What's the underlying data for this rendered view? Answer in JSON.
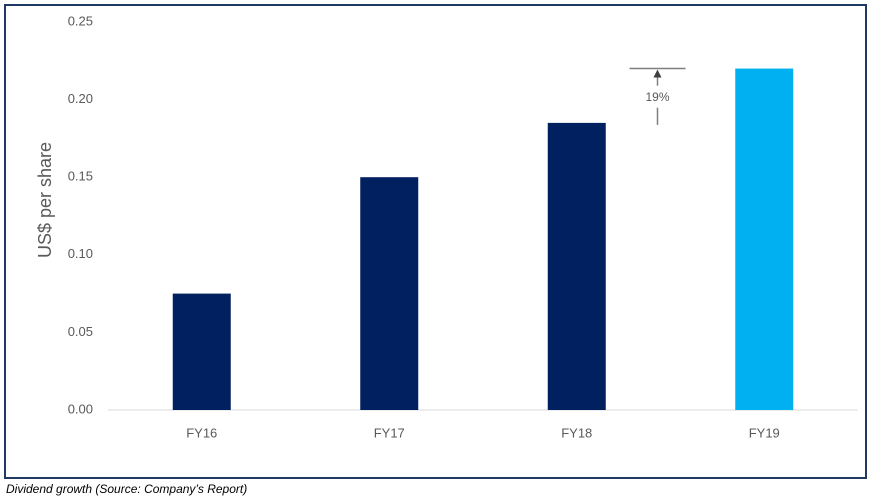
{
  "chart_data": {
    "type": "bar",
    "y_label": "US$ per share",
    "categories": [
      "FY16",
      "FY17",
      "FY18",
      "FY19"
    ],
    "values": [
      0.075,
      0.15,
      0.185,
      0.22
    ],
    "colors": [
      "#002060",
      "#002060",
      "#002060",
      "#00b0f0"
    ],
    "ylim": [
      0,
      0.25
    ],
    "yticks": [
      {
        "value": 0,
        "label": "0.00"
      },
      {
        "value": 0.05,
        "label": "0.05"
      },
      {
        "value": 0.1,
        "label": "0.10"
      },
      {
        "value": 0.15,
        "label": "0.15"
      },
      {
        "value": 0.2,
        "label": "0.20"
      },
      {
        "value": 0.25,
        "label": "0.25"
      }
    ],
    "grid": false,
    "annotation": "19%"
  },
  "caption": "Dividend growth (Source: Company’s Report)"
}
